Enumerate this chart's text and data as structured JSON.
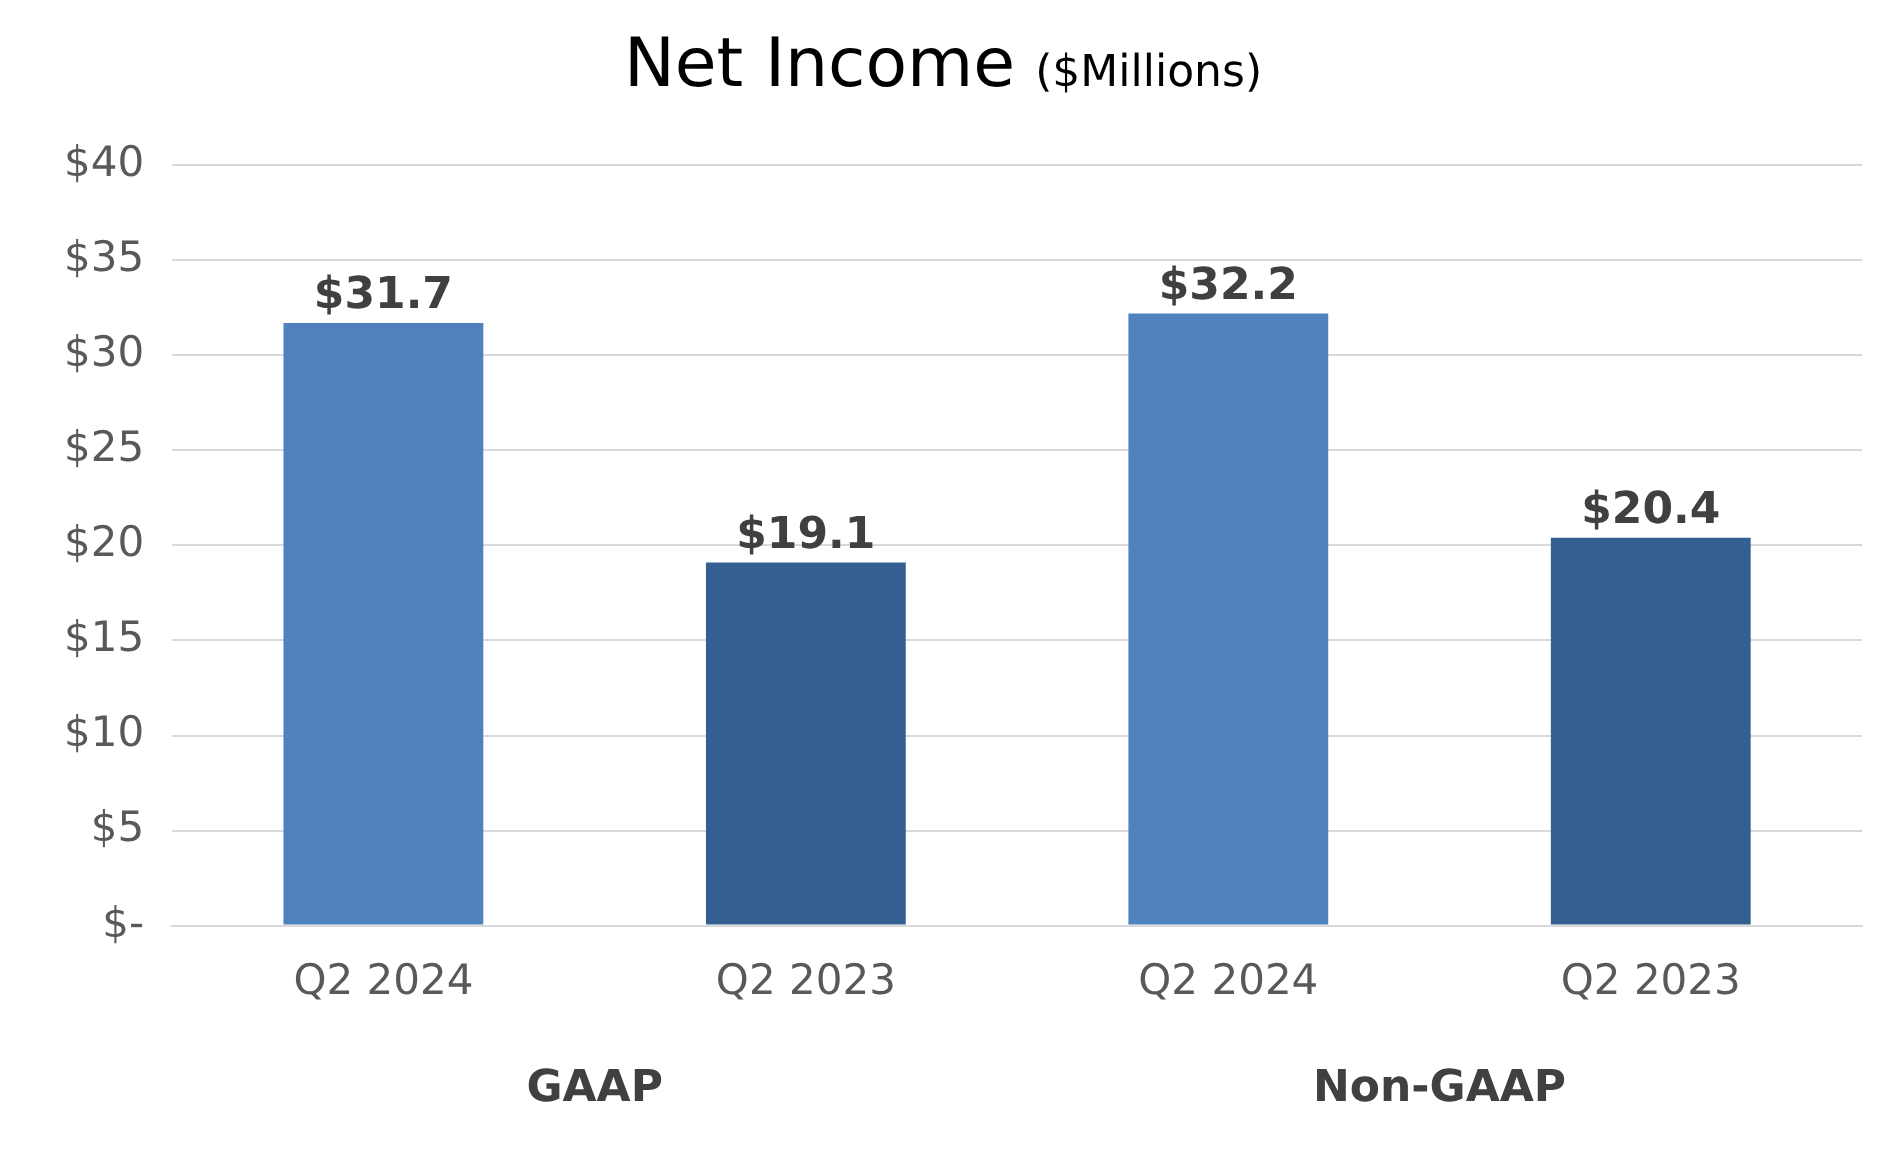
{
  "chart_data": {
    "type": "bar",
    "title": "Net Income",
    "subtitle": "($Millions)",
    "categories": [
      "Q2 2024",
      "Q2 2023",
      "Q2 2024",
      "Q2 2023"
    ],
    "values": [
      31.7,
      19.1,
      32.2,
      20.4
    ],
    "colors": [
      "#4f81bd",
      "#355f91",
      "#4f81bd",
      "#355f91"
    ],
    "value_labels": [
      "$31.7",
      "$19.1",
      "$32.2",
      "$20.4"
    ],
    "ylim": [
      0,
      40
    ],
    "yticks": [
      {
        "value": 0,
        "label": "$-"
      },
      {
        "value": 5,
        "label": "$5"
      },
      {
        "value": 10,
        "label": "$10"
      },
      {
        "value": 15,
        "label": "$15"
      },
      {
        "value": 20,
        "label": "$20"
      },
      {
        "value": 25,
        "label": "$25"
      },
      {
        "value": 30,
        "label": "$30"
      },
      {
        "value": 35,
        "label": "$35"
      },
      {
        "value": 40,
        "label": "$40"
      }
    ],
    "grid": "y",
    "legend": false,
    "annotations": [
      "GAAP",
      "Non-GAAP"
    ]
  }
}
